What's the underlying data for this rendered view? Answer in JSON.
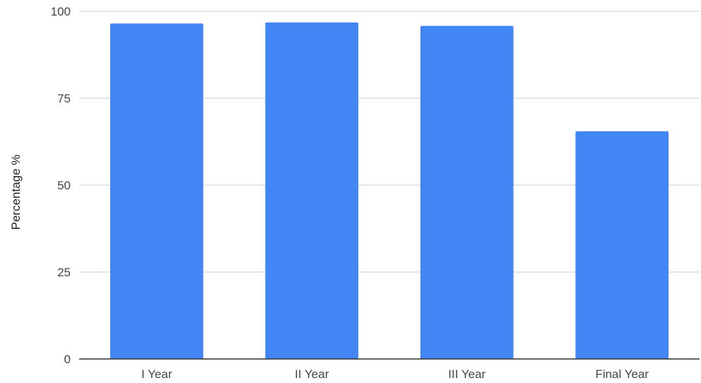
{
  "chart_data": {
    "type": "bar",
    "title": "",
    "xlabel": "",
    "ylabel": "Percentage %",
    "categories": [
      "I Year",
      "II Year",
      "III Year",
      "Final Year"
    ],
    "series": [
      {
        "values": [
          96.5,
          96.8,
          95.8,
          65.5
        ]
      }
    ],
    "ylim": [
      0,
      100
    ],
    "yticks": [
      "0",
      "25",
      "50",
      "75",
      "100"
    ],
    "ytick_values": [
      0,
      25,
      50,
      75,
      100
    ],
    "grid": true,
    "legend": "none",
    "colors": {
      "bar": "#4285f4",
      "grid": "#cccccc",
      "baseline": "#333333"
    }
  }
}
